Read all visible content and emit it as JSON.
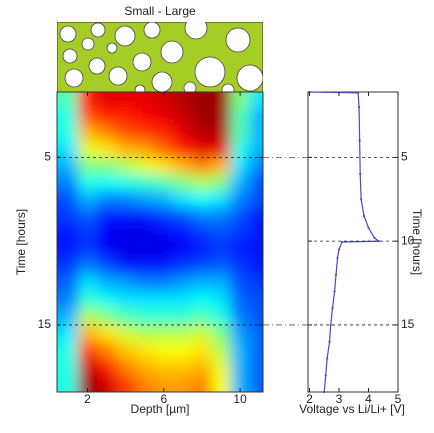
{
  "chart_data": [
    {
      "type": "heatmap",
      "title": "Small - Large",
      "xlabel": "Depth [µm]",
      "ylabel": "Time [hours]",
      "colormap": "jet",
      "x": [
        1,
        2,
        3,
        4,
        5,
        6,
        7,
        8,
        9,
        10,
        11
      ],
      "y": [
        1.5,
        2.5,
        3.5,
        4.5,
        5.5,
        6.5,
        7.5,
        8.5,
        9.5,
        10.5,
        11.5,
        12.5,
        13.5,
        14.5,
        15.5,
        16.5,
        17.5,
        18.5
      ],
      "z": [
        [
          0.45,
          0.85,
          0.9,
          0.9,
          0.9,
          0.92,
          0.95,
          0.97,
          0.97,
          0.5,
          0.35
        ],
        [
          0.4,
          0.8,
          0.85,
          0.85,
          0.88,
          0.9,
          0.93,
          0.97,
          0.97,
          0.45,
          0.3
        ],
        [
          0.4,
          0.7,
          0.75,
          0.8,
          0.82,
          0.85,
          0.9,
          0.95,
          0.95,
          0.45,
          0.3
        ],
        [
          0.35,
          0.6,
          0.65,
          0.7,
          0.72,
          0.78,
          0.85,
          0.9,
          0.9,
          0.4,
          0.3
        ],
        [
          0.3,
          0.5,
          0.5,
          0.55,
          0.6,
          0.65,
          0.7,
          0.75,
          0.7,
          0.35,
          0.25
        ],
        [
          0.25,
          0.4,
          0.38,
          0.4,
          0.42,
          0.45,
          0.5,
          0.55,
          0.5,
          0.3,
          0.2
        ],
        [
          0.2,
          0.3,
          0.25,
          0.25,
          0.28,
          0.3,
          0.35,
          0.38,
          0.35,
          0.25,
          0.2
        ],
        [
          0.18,
          0.22,
          0.15,
          0.15,
          0.15,
          0.18,
          0.2,
          0.25,
          0.25,
          0.2,
          0.15
        ],
        [
          0.15,
          0.18,
          0.12,
          0.1,
          0.1,
          0.12,
          0.15,
          0.18,
          0.2,
          0.18,
          0.15
        ],
        [
          0.15,
          0.18,
          0.12,
          0.1,
          0.1,
          0.1,
          0.12,
          0.15,
          0.18,
          0.15,
          0.15
        ],
        [
          0.18,
          0.25,
          0.2,
          0.15,
          0.15,
          0.15,
          0.18,
          0.2,
          0.22,
          0.18,
          0.15
        ],
        [
          0.22,
          0.35,
          0.3,
          0.28,
          0.25,
          0.25,
          0.28,
          0.3,
          0.3,
          0.2,
          0.18
        ],
        [
          0.25,
          0.42,
          0.38,
          0.35,
          0.35,
          0.35,
          0.35,
          0.38,
          0.35,
          0.22,
          0.2
        ],
        [
          0.3,
          0.55,
          0.5,
          0.45,
          0.42,
          0.42,
          0.42,
          0.45,
          0.4,
          0.25,
          0.2
        ],
        [
          0.35,
          0.7,
          0.65,
          0.58,
          0.55,
          0.55,
          0.55,
          0.58,
          0.5,
          0.28,
          0.22
        ],
        [
          0.4,
          0.82,
          0.75,
          0.68,
          0.65,
          0.62,
          0.62,
          0.65,
          0.55,
          0.3,
          0.22
        ],
        [
          0.4,
          0.92,
          0.85,
          0.75,
          0.7,
          0.68,
          0.68,
          0.7,
          0.6,
          0.3,
          0.22
        ],
        [
          0.4,
          0.97,
          0.92,
          0.82,
          0.75,
          0.72,
          0.72,
          0.75,
          0.62,
          0.3,
          0.22
        ]
      ],
      "xlim": [
        0.4,
        11.2
      ],
      "ylim": [
        1.1,
        19.0
      ],
      "xticks": [
        2,
        6,
        10
      ],
      "yticks": [
        5,
        15
      ],
      "grid": true
    },
    {
      "type": "line",
      "xlabel": "Voltage vs Li/Li+ [V]",
      "ylabel": "Time [hours]",
      "series": [
        {
          "color": "#4a4ac8",
          "x": [
            2.0,
            3.65,
            3.68,
            3.7,
            3.72,
            3.75,
            3.85,
            4.0,
            4.2,
            4.35,
            3.1,
            3.0,
            2.95,
            2.9,
            2.85,
            2.78,
            2.72,
            2.68,
            2.6,
            2.55,
            2.5
          ],
          "values": [
            1.1,
            1.15,
            2,
            4,
            6,
            7.5,
            8.5,
            9.2,
            9.8,
            10.0,
            10.05,
            10.5,
            11,
            12,
            13,
            14,
            15,
            16,
            17,
            18,
            19.0
          ]
        }
      ],
      "xlim": [
        1.95,
        5.0
      ],
      "ylim": [
        1.1,
        19.0
      ],
      "xticks": [
        2,
        3,
        4,
        5
      ],
      "yticks": [
        5,
        10,
        15
      ],
      "grid": true
    }
  ]
}
